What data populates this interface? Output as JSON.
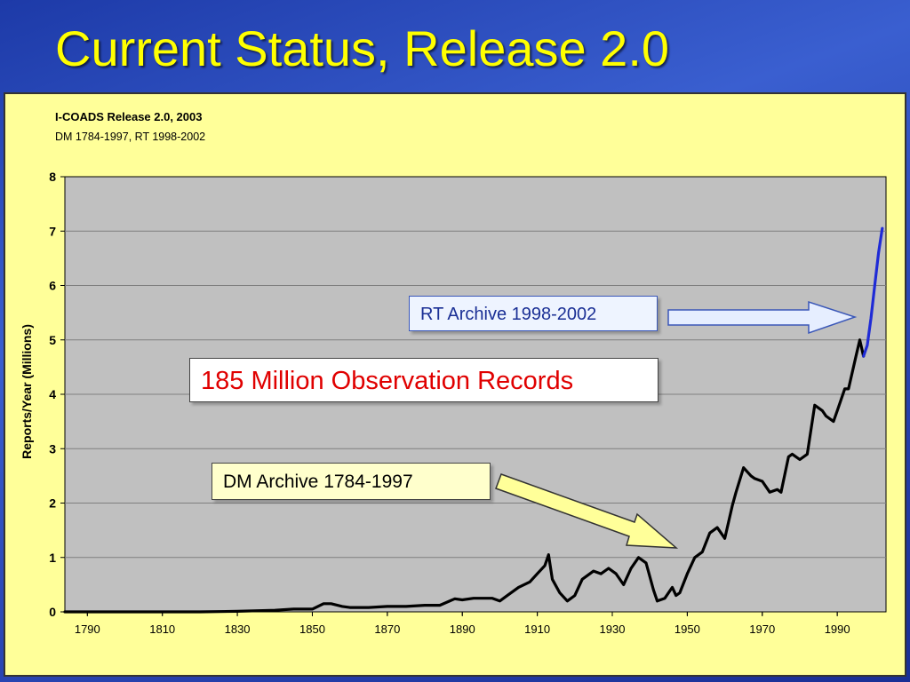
{
  "slide": {
    "title": "Current Status, Release 2.0"
  },
  "annotations": {
    "rt_archive": "RT Archive 1998-2002",
    "total_records": "185 Million Observation Records",
    "dm_archive": "DM Archive 1784-1997"
  },
  "colors": {
    "title": "#ffff00",
    "panel_bg": "#ffff99",
    "plot_bg": "#c0c0c0",
    "dm_line": "#000000",
    "rt_line": "#1f2bd6",
    "rt_arrow_fill": "#e6eeff",
    "dm_arrow_fill": "#ffff99",
    "highlight_text": "#e00000"
  },
  "chart_data": {
    "type": "line",
    "title": "I-COADS Release 2.0, 2003",
    "subtitle": "DM 1784-1997, RT 1998-2002",
    "xlabel": "",
    "ylabel": "Reports/Year (Millions)",
    "xlim": [
      1784,
      2003
    ],
    "ylim": [
      0,
      8
    ],
    "x_ticks": [
      "1790",
      "1810",
      "1830",
      "1850",
      "1870",
      "1890",
      "1910",
      "1930",
      "1950",
      "1970",
      "1990"
    ],
    "y_ticks": [
      "0",
      "1",
      "2",
      "3",
      "4",
      "5",
      "6",
      "7",
      "8"
    ],
    "grid": true,
    "series": [
      {
        "name": "DM 1784-1997",
        "color": "#000000",
        "x": [
          1784,
          1800,
          1820,
          1830,
          1840,
          1845,
          1850,
          1853,
          1855,
          1858,
          1860,
          1865,
          1870,
          1875,
          1880,
          1884,
          1888,
          1890,
          1893,
          1896,
          1898,
          1900,
          1902,
          1905,
          1908,
          1910,
          1912,
          1913,
          1914,
          1916,
          1918,
          1920,
          1922,
          1925,
          1927,
          1929,
          1931,
          1933,
          1935,
          1937,
          1939,
          1941,
          1942,
          1944,
          1946,
          1947,
          1948,
          1950,
          1952,
          1954,
          1956,
          1958,
          1960,
          1962,
          1963,
          1965,
          1967,
          1968,
          1970,
          1972,
          1974,
          1975,
          1977,
          1978,
          1980,
          1982,
          1984,
          1986,
          1987,
          1989,
          1990,
          1992,
          1993,
          1995,
          1996,
          1997
        ],
        "y": [
          0,
          0,
          0,
          0.01,
          0.03,
          0.05,
          0.05,
          0.15,
          0.15,
          0.1,
          0.08,
          0.08,
          0.1,
          0.1,
          0.12,
          0.12,
          0.24,
          0.22,
          0.25,
          0.25,
          0.25,
          0.2,
          0.3,
          0.45,
          0.55,
          0.7,
          0.85,
          1.05,
          0.6,
          0.35,
          0.2,
          0.3,
          0.6,
          0.75,
          0.7,
          0.8,
          0.7,
          0.5,
          0.8,
          1.0,
          0.9,
          0.4,
          0.2,
          0.25,
          0.45,
          0.3,
          0.35,
          0.7,
          1.0,
          1.1,
          1.45,
          1.55,
          1.35,
          1.95,
          2.2,
          2.65,
          2.5,
          2.45,
          2.4,
          2.2,
          2.25,
          2.2,
          2.85,
          2.9,
          2.8,
          2.9,
          3.8,
          3.7,
          3.6,
          3.5,
          3.7,
          4.1,
          4.1,
          4.7,
          5.0,
          4.7
        ]
      },
      {
        "name": "RT 1998-2002",
        "color": "#1f2bd6",
        "x": [
          1997,
          1998,
          1999,
          2000,
          2001,
          2002
        ],
        "y": [
          4.7,
          4.9,
          5.4,
          6.0,
          6.6,
          7.05
        ]
      }
    ]
  }
}
